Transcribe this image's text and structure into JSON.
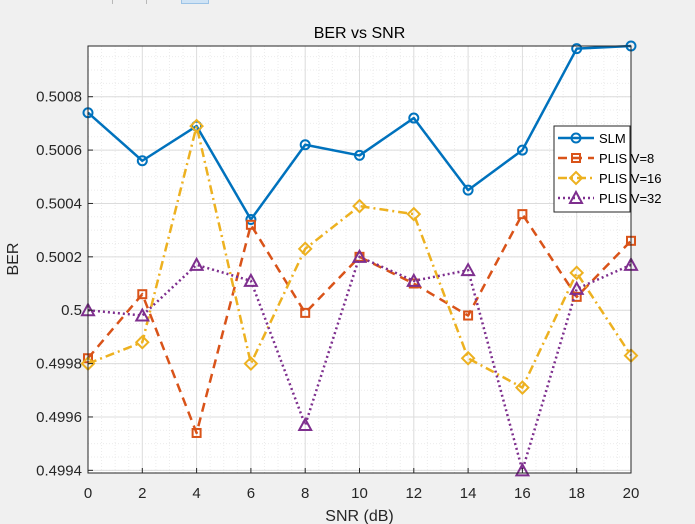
{
  "chart_data": {
    "type": "line",
    "title": "BER vs SNR",
    "xlabel": "SNR (dB)",
    "ylabel": "BER",
    "xlim": [
      0,
      20
    ],
    "ylim": [
      0.49939,
      0.50099
    ],
    "xticks": [
      "0",
      "2",
      "4",
      "6",
      "8",
      "10",
      "12",
      "14",
      "16",
      "18",
      "20"
    ],
    "xtick_values": [
      0,
      2,
      4,
      6,
      8,
      10,
      12,
      14,
      16,
      18,
      20
    ],
    "yticks": [
      "0.4994",
      "0.4996",
      "0.4998",
      "0.5",
      "0.5002",
      "0.5004",
      "0.5006",
      "0.5008"
    ],
    "ytick_values": [
      0.4994,
      0.4996,
      0.4998,
      0.5,
      0.5002,
      0.5004,
      0.5006,
      0.5008
    ],
    "grid": true,
    "minor_grid": true,
    "legend_position": "right",
    "x": [
      0,
      2,
      4,
      6,
      8,
      10,
      12,
      14,
      16,
      18,
      20
    ],
    "series": [
      {
        "name": "SLM",
        "color": "#0072BD",
        "line_style": "solid",
        "marker": "circle",
        "values": [
          0.50074,
          0.50056,
          0.50069,
          0.50034,
          0.50062,
          0.50058,
          0.50072,
          0.50045,
          0.5006,
          0.50098,
          0.50099
        ]
      },
      {
        "name": "PLIS V=8",
        "color": "#D95319",
        "line_style": "dashed",
        "marker": "square",
        "values": [
          0.49982,
          0.50006,
          0.49954,
          0.50032,
          0.49999,
          0.5002,
          0.5001,
          0.49998,
          0.50036,
          0.50005,
          0.50026
        ]
      },
      {
        "name": "PLIS V=16",
        "color": "#EDB120",
        "line_style": "dashdot",
        "marker": "diamond",
        "values": [
          0.4998,
          0.49988,
          0.50069,
          0.4998,
          0.50023,
          0.50039,
          0.50036,
          0.49982,
          0.49971,
          0.50014,
          0.49983
        ]
      },
      {
        "name": "PLIS V=32",
        "color": "#7E2F8E",
        "line_style": "dotted",
        "marker": "triangle",
        "values": [
          0.5,
          0.49998,
          0.50017,
          0.50011,
          0.49957,
          0.5002,
          0.50011,
          0.50015,
          0.4994,
          0.50008,
          0.50017
        ]
      }
    ]
  }
}
